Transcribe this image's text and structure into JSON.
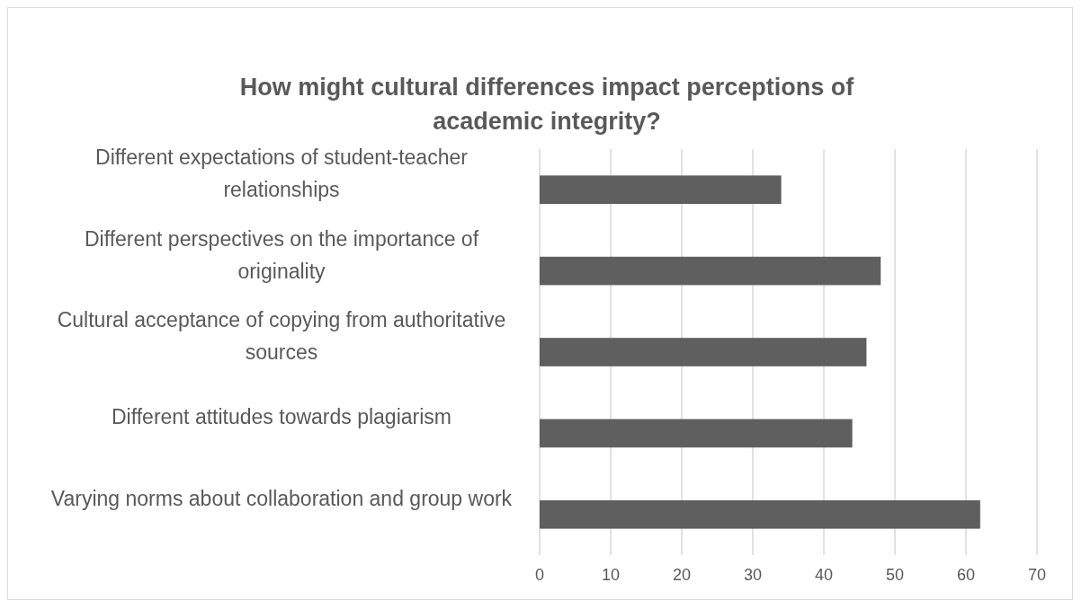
{
  "chart_data": {
    "type": "bar",
    "orientation": "horizontal",
    "title": "How might cultural differences impact perceptions of academic integrity?",
    "categories": [
      "Different expectations of student-teacher relationships",
      "Different perspectives on the importance of originality",
      "Cultural acceptance of copying from authoritative sources",
      "Different attitudes towards plagiarism",
      "Varying norms about collaboration and group work"
    ],
    "values": [
      34,
      48,
      46,
      44,
      62
    ],
    "color": "#5f5f5f",
    "xlim": [
      0,
      70
    ],
    "xticks": [
      0,
      10,
      20,
      30,
      40,
      50,
      60,
      70
    ],
    "grid": "x"
  }
}
